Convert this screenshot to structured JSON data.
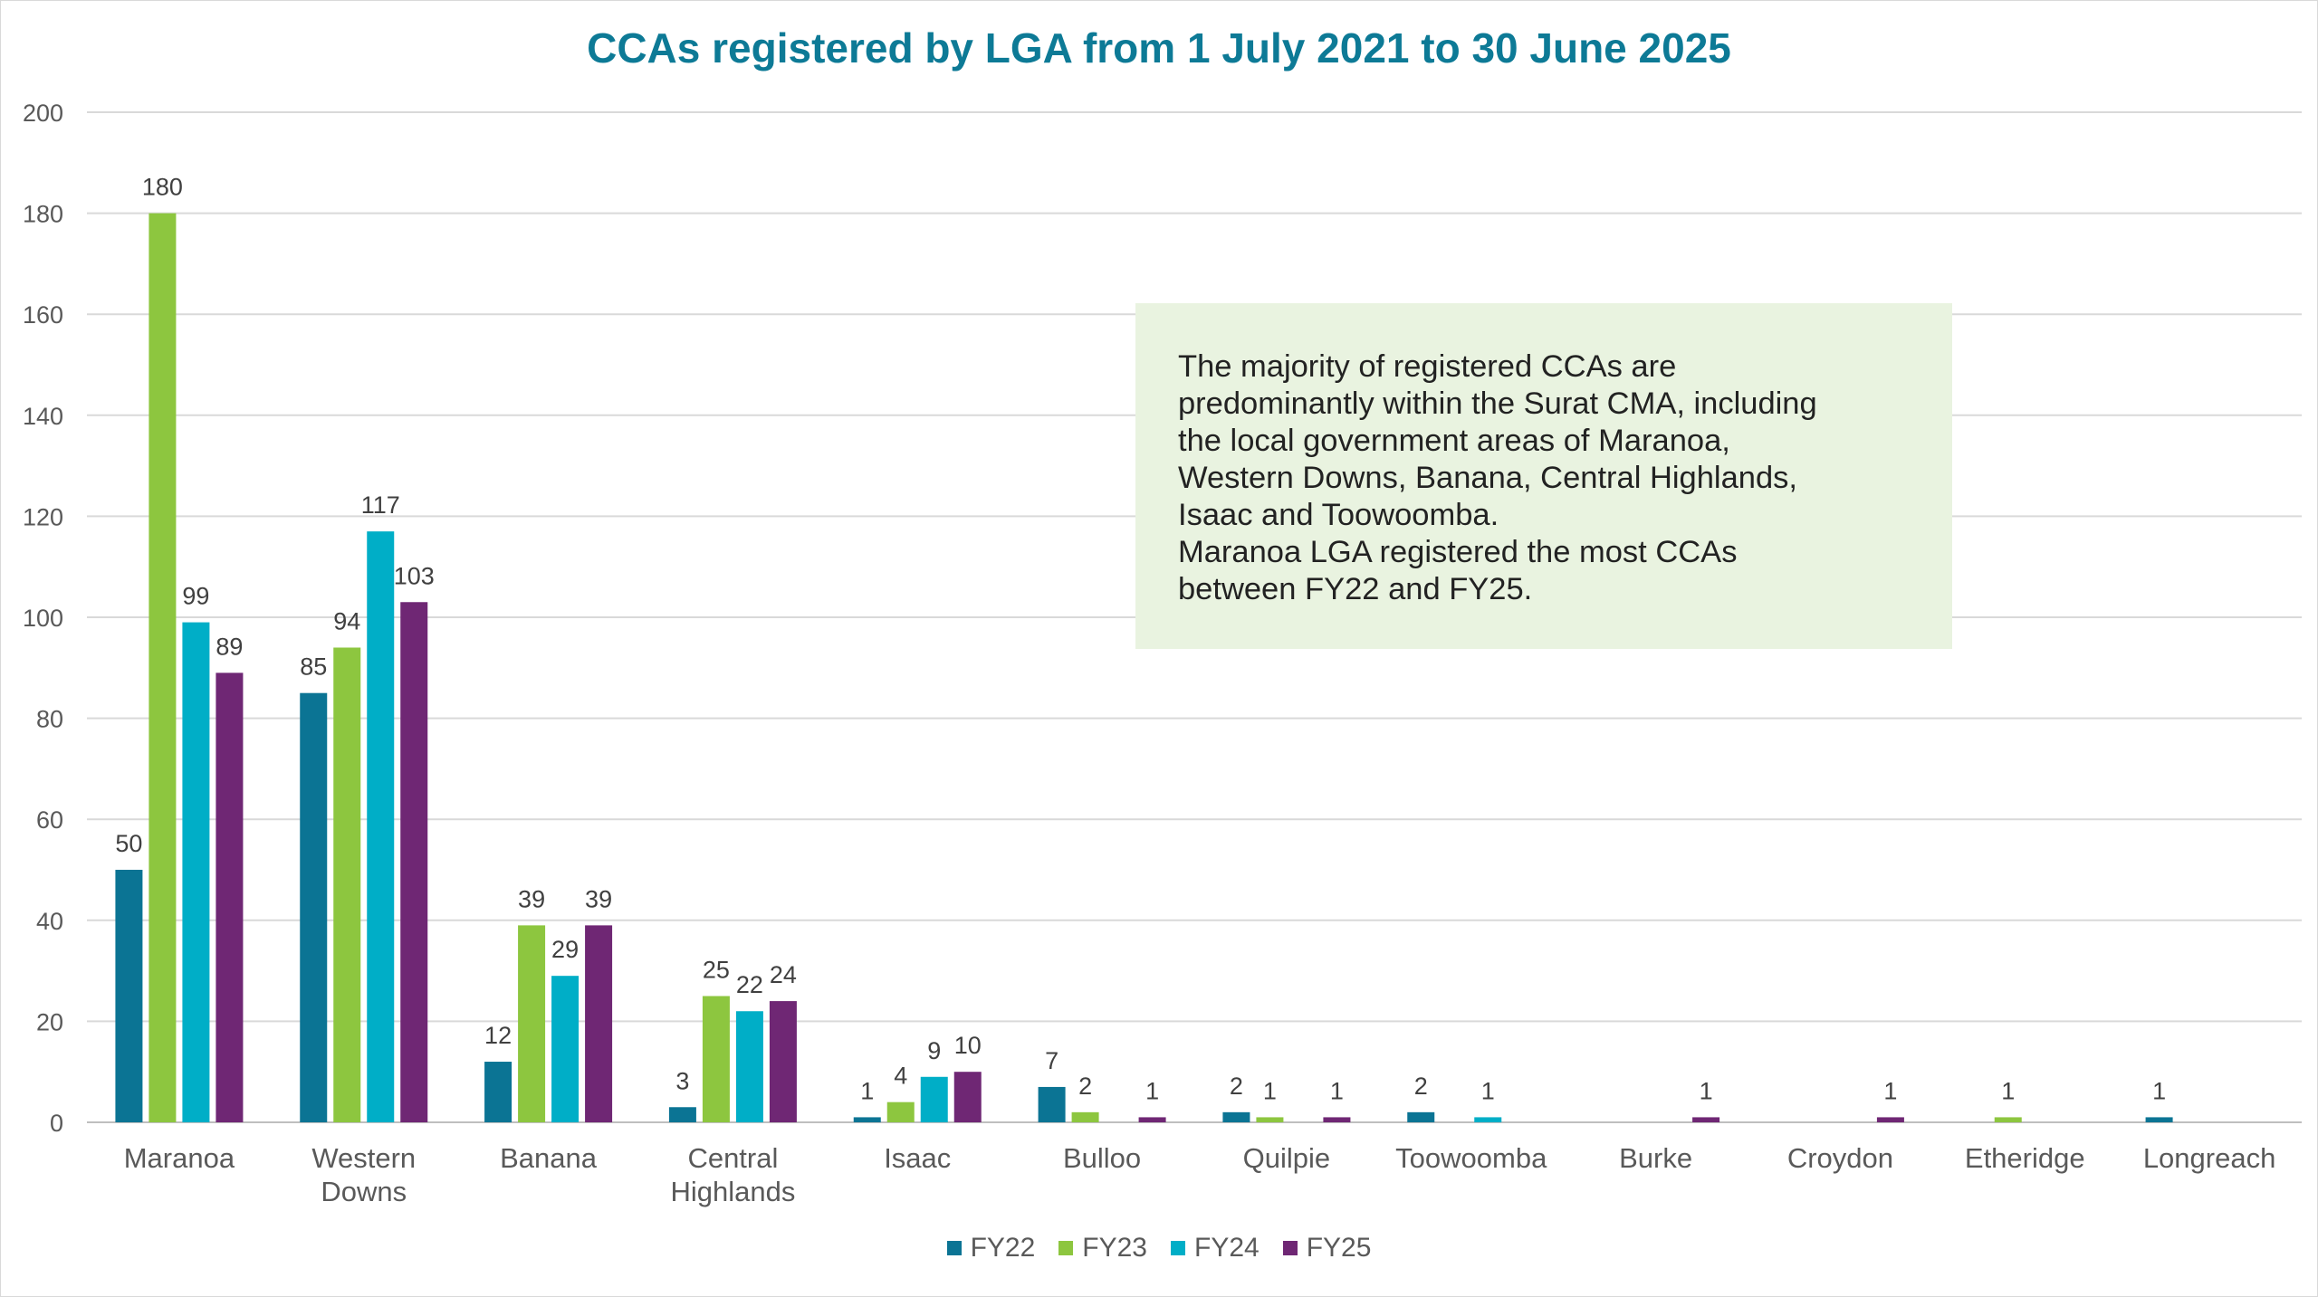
{
  "chart_data": {
    "type": "bar",
    "title": "CCAs registered by LGA from 1 July 2021 to 30 June 2025",
    "xlabel": "",
    "ylabel": "",
    "ylim": [
      0,
      200
    ],
    "yticks": [
      0,
      20,
      40,
      60,
      80,
      100,
      120,
      140,
      160,
      180,
      200
    ],
    "grid": true,
    "legend_position": "bottom",
    "categories": [
      "Maranoa",
      "Western Downs",
      "Banana",
      "Central Highlands",
      "Isaac",
      "Bulloo",
      "Quilpie",
      "Toowoomba",
      "Burke",
      "Croydon",
      "Etheridge",
      "Longreach"
    ],
    "series": [
      {
        "name": "FY22",
        "color": "#0b7494",
        "values": [
          50,
          85,
          12,
          3,
          1,
          7,
          2,
          2,
          null,
          null,
          null,
          1
        ]
      },
      {
        "name": "FY23",
        "color": "#8dc63f",
        "values": [
          180,
          94,
          39,
          25,
          4,
          2,
          1,
          null,
          null,
          null,
          1,
          null
        ]
      },
      {
        "name": "FY24",
        "color": "#00aec7",
        "values": [
          99,
          117,
          29,
          22,
          9,
          null,
          null,
          1,
          null,
          null,
          null,
          null
        ]
      },
      {
        "name": "FY25",
        "color": "#6f2774",
        "values": [
          89,
          103,
          39,
          24,
          10,
          1,
          1,
          null,
          1,
          1,
          null,
          null
        ]
      }
    ]
  },
  "annotation": "The majority of registered CCAs are\npredominantly within the Surat CMA, including\nthe local government areas of Maranoa,\nWestern Downs, Banana, Central Highlands,\nIsaac and Toowoomba.\nMaranoa LGA registered the most CCAs\nbetween FY22 and FY25."
}
